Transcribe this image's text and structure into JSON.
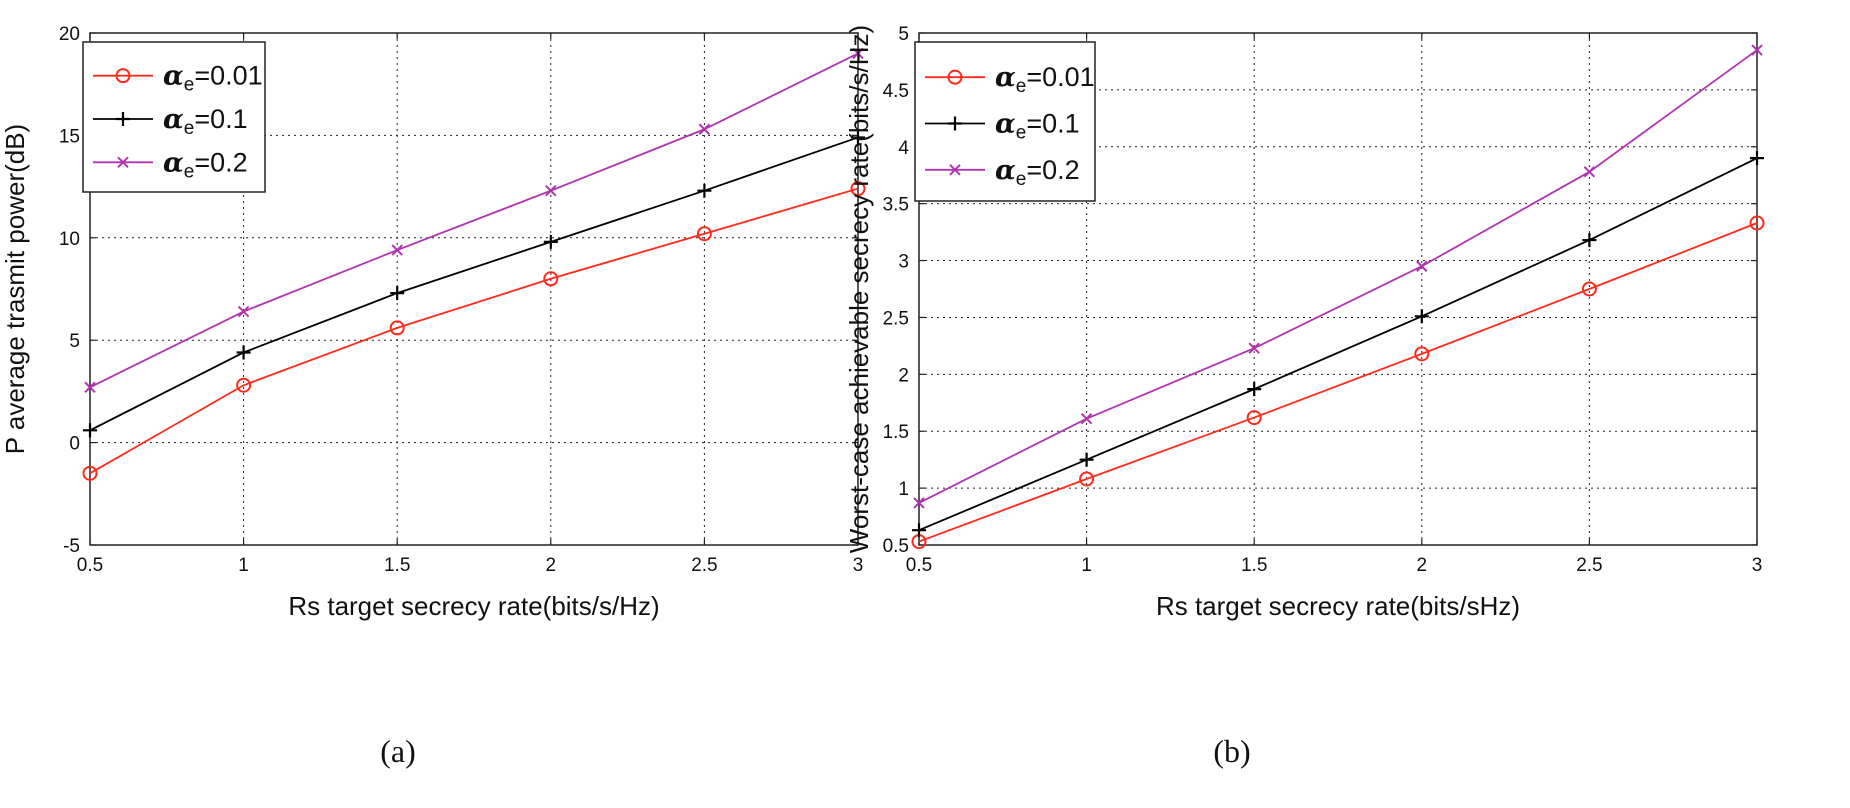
{
  "chart_data": [
    {
      "type": "line",
      "caption": "(a)",
      "xlabel": "Rs target secrecy rate(bits/s/Hz)",
      "ylabel": "P average trasmit power(dB)",
      "xlim": [
        0.5,
        3
      ],
      "ylim": [
        -5,
        20
      ],
      "xticks": [
        0.5,
        1,
        1.5,
        2,
        2.5,
        3
      ],
      "xtick_labels": [
        "0.5",
        "1",
        "1.5",
        "2",
        "2.5",
        "3"
      ],
      "yticks": [
        -5,
        0,
        5,
        10,
        15,
        20
      ],
      "ytick_labels": [
        "-5",
        "0",
        "5",
        "10",
        "15",
        "20"
      ],
      "grid": true,
      "legend_position": "top-left",
      "x": [
        0.5,
        1,
        1.5,
        2,
        2.5,
        3
      ],
      "series": [
        {
          "name": "=0.01",
          "symbol": "α",
          "subscript": "e",
          "color": "#ff2a1a",
          "marker": "circle",
          "values": [
            -1.5,
            2.8,
            5.6,
            8.0,
            10.2,
            12.4
          ]
        },
        {
          "name": "=0.1",
          "symbol": "α",
          "subscript": "e",
          "color": "#000000",
          "marker": "plus",
          "values": [
            0.6,
            4.4,
            7.3,
            9.8,
            12.3,
            14.9
          ]
        },
        {
          "name": "=0.2",
          "symbol": "α",
          "subscript": "e",
          "color": "#b233b2",
          "marker": "x",
          "values": [
            2.7,
            6.4,
            9.4,
            12.3,
            15.3,
            19.0
          ]
        }
      ]
    },
    {
      "type": "line",
      "caption": "(b)",
      "xlabel": "Rs target secrecy rate(bits/sHz)",
      "ylabel": "Worst-case achievable secrecy rate(bits/s/Hz)",
      "xlim": [
        0.5,
        3
      ],
      "ylim": [
        0.5,
        5
      ],
      "xticks": [
        0.5,
        1,
        1.5,
        2,
        2.5,
        3
      ],
      "xtick_labels": [
        "0.5",
        "1",
        "1.5",
        "2",
        "2.5",
        "3"
      ],
      "yticks": [
        0.5,
        1,
        1.5,
        2,
        2.5,
        3,
        3.5,
        4,
        4.5,
        5
      ],
      "ytick_labels": [
        "0.5",
        "1",
        "1.5",
        "2",
        "2.5",
        "3",
        "3.5",
        "4",
        "4.5",
        "5"
      ],
      "grid": true,
      "legend_position": "top-left",
      "x": [
        0.5,
        1,
        1.5,
        2,
        2.5,
        3
      ],
      "series": [
        {
          "name": "=0.01",
          "symbol": "α",
          "subscript": "e",
          "color": "#ff2a1a",
          "marker": "circle",
          "values": [
            0.53,
            1.08,
            1.62,
            2.18,
            2.75,
            3.33
          ]
        },
        {
          "name": "=0.1",
          "symbol": "α",
          "subscript": "e",
          "color": "#000000",
          "marker": "plus",
          "values": [
            0.63,
            1.25,
            1.87,
            2.51,
            3.18,
            3.9
          ]
        },
        {
          "name": "=0.2",
          "symbol": "α",
          "subscript": "e",
          "color": "#b233b2",
          "marker": "x",
          "values": [
            0.87,
            1.61,
            2.23,
            2.95,
            3.78,
            4.85
          ]
        }
      ]
    }
  ]
}
